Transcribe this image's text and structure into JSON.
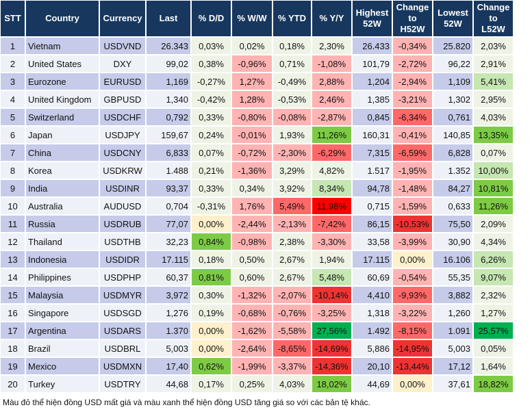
{
  "headers": [
    "STT",
    "Country",
    "Currency",
    "Last",
    "% D/D",
    "% W/W",
    "% YTD",
    "% Y/Y",
    "Highest\n52W",
    "Change\nto\nH52W",
    "Lowest\n52W",
    "Change\nto\nL52W"
  ],
  "tone_colors": {
    "n": "#eef3e6",
    "y": "#fff0cc",
    "r1": "#ffb3b3",
    "r2": "#ff6868",
    "r3": "#ee3333",
    "r4": "#ff0000",
    "g1": "#c6e6b2",
    "g2": "#7dcb45",
    "g3": "#00b050",
    "header": "#17375e",
    "row_blue": "#c5cbe9"
  },
  "rows": [
    {
      "cells": [
        "1",
        "Vietnam",
        "USDVND",
        "26.343",
        "0,03%",
        "0,02%",
        "0,18%",
        "2,30%",
        "26.433",
        "-0,34%",
        "25.820",
        "2,03%"
      ],
      "tones": [
        "n",
        "n",
        "n",
        "n",
        "r1",
        "n"
      ]
    },
    {
      "cells": [
        "2",
        "United States",
        "DXY",
        "99,02",
        "0,38%",
        "-0,96%",
        "0,71%",
        "-1,08%",
        "101,79",
        "-2,72%",
        "96,22",
        "2,91%"
      ],
      "tones": [
        "n",
        "r1",
        "n",
        "r1",
        "r1",
        "n"
      ]
    },
    {
      "cells": [
        "3",
        "Eurozone",
        "EURUSD",
        "1,169",
        "-0,27%",
        "1,27%",
        "-0,49%",
        "2,88%",
        "1,204",
        "-2,94%",
        "1,109",
        "5,41%"
      ],
      "tones": [
        "n",
        "r1",
        "n",
        "r1",
        "r1",
        "g1"
      ]
    },
    {
      "cells": [
        "4",
        "United Kingdom",
        "GBPUSD",
        "1,340",
        "-0,42%",
        "1,28%",
        "-0,53%",
        "2,46%",
        "1,385",
        "-3,21%",
        "1,302",
        "2,95%"
      ],
      "tones": [
        "n",
        "r1",
        "n",
        "r1",
        "r1",
        "n"
      ]
    },
    {
      "cells": [
        "5",
        "Switzerland",
        "USDCHF",
        "0,792",
        "0,33%",
        "-0,80%",
        "-0,08%",
        "-2,87%",
        "0,845",
        "-6,34%",
        "0,761",
        "4,03%"
      ],
      "tones": [
        "n",
        "r1",
        "r1",
        "r1",
        "r2",
        "n"
      ]
    },
    {
      "cells": [
        "6",
        "Japan",
        "USDJPY",
        "159,67",
        "0,24%",
        "-0,01%",
        "1,93%",
        "11,26%",
        "160,31",
        "-0,41%",
        "140,85",
        "13,35%"
      ],
      "tones": [
        "n",
        "r1",
        "n",
        "g2",
        "r1",
        "g2"
      ]
    },
    {
      "cells": [
        "7",
        "China",
        "USDCNY",
        "6,833",
        "0,07%",
        "-0,72%",
        "-2,30%",
        "-6,29%",
        "7,315",
        "-6,59%",
        "6,828",
        "0,07%"
      ],
      "tones": [
        "n",
        "r1",
        "r1",
        "r2",
        "r2",
        "n"
      ]
    },
    {
      "cells": [
        "8",
        "Korea",
        "USDKRW",
        "1.488",
        "0,21%",
        "-1,36%",
        "3,29%",
        "4,82%",
        "1.517",
        "-1,95%",
        "1.352",
        "10,00%"
      ],
      "tones": [
        "n",
        "r1",
        "n",
        "n",
        "r1",
        "g1"
      ]
    },
    {
      "cells": [
        "9",
        "India",
        "USDINR",
        "93,37",
        "0,33%",
        "0,34%",
        "3,92%",
        "8,34%",
        "94,78",
        "-1,48%",
        "84,27",
        "10,81%"
      ],
      "tones": [
        "n",
        "n",
        "n",
        "g1",
        "r1",
        "g2"
      ]
    },
    {
      "cells": [
        "10",
        "Australia",
        "AUDUSD",
        "0,704",
        "-0,31%",
        "1,76%",
        "5,49%",
        "11,98%",
        "0,715",
        "-1,59%",
        "0,633",
        "11,26%"
      ],
      "tones": [
        "n",
        "r1",
        "r2",
        "r4",
        "r1",
        "g2"
      ]
    },
    {
      "cells": [
        "11",
        "Russia",
        "USDRUB",
        "77,07",
        "0,00%",
        "-2,44%",
        "-2,13%",
        "-7,42%",
        "86,15",
        "-10,53%",
        "75,50",
        "2,09%"
      ],
      "tones": [
        "y",
        "r1",
        "r1",
        "r2",
        "r3",
        "n"
      ]
    },
    {
      "cells": [
        "12",
        "Thailand",
        "USDTHB",
        "32,23",
        "0,84%",
        "-0,98%",
        "2,38%",
        "-3,30%",
        "33,58",
        "-3,99%",
        "30,90",
        "4,34%"
      ],
      "tones": [
        "g2",
        "r1",
        "n",
        "r1",
        "r1",
        "n"
      ]
    },
    {
      "cells": [
        "13",
        "Indonesia",
        "USDIDR",
        "17.115",
        "0,18%",
        "0,50%",
        "2,67%",
        "1,94%",
        "17.115",
        "0,00%",
        "16.106",
        "6,26%"
      ],
      "tones": [
        "n",
        "n",
        "n",
        "n",
        "y",
        "g1"
      ]
    },
    {
      "cells": [
        "14",
        "Philippines",
        "USDPHP",
        "60,37",
        "0,81%",
        "0,60%",
        "2,67%",
        "5,48%",
        "60,69",
        "-0,54%",
        "55,35",
        "9,07%"
      ],
      "tones": [
        "g2",
        "n",
        "n",
        "g1",
        "r1",
        "g1"
      ]
    },
    {
      "cells": [
        "15",
        "Malaysia",
        "USDMYR",
        "3,972",
        "0,30%",
        "-1,32%",
        "-2,07%",
        "-10,14%",
        "4,410",
        "-9,93%",
        "3,882",
        "2,32%"
      ],
      "tones": [
        "n",
        "r1",
        "r1",
        "r3",
        "r2",
        "n"
      ]
    },
    {
      "cells": [
        "16",
        "Singapore",
        "USDSGD",
        "1,276",
        "0,19%",
        "-0,68%",
        "-0,76%",
        "-3,25%",
        "1,318",
        "-3,22%",
        "1,260",
        "1,27%"
      ],
      "tones": [
        "n",
        "r1",
        "r1",
        "r1",
        "r1",
        "n"
      ]
    },
    {
      "cells": [
        "17",
        "Argentina",
        "USDARS",
        "1.370",
        "0,00%",
        "-1,62%",
        "-5,58%",
        "27,56%",
        "1.492",
        "-8,15%",
        "1.091",
        "25,57%"
      ],
      "tones": [
        "y",
        "r1",
        "r1",
        "g3",
        "r2",
        "g3"
      ]
    },
    {
      "cells": [
        "18",
        "Brazil",
        "USDBRL",
        "5,003",
        "0,00%",
        "-2,64%",
        "-8,65%",
        "-14,69%",
        "5,886",
        "-14,95%",
        "5,003",
        "0,05%"
      ],
      "tones": [
        "y",
        "r1",
        "r2",
        "r3",
        "r3",
        "n"
      ]
    },
    {
      "cells": [
        "19",
        "Mexico",
        "USDMXN",
        "17,40",
        "0,62%",
        "-1,99%",
        "-3,37%",
        "-14,36%",
        "20,10",
        "-13,44%",
        "17,12",
        "1,64%"
      ],
      "tones": [
        "g2",
        "r1",
        "r1",
        "r3",
        "r3",
        "n"
      ]
    },
    {
      "cells": [
        "20",
        "Turkey",
        "USDTRY",
        "44,68",
        "0,17%",
        "0,25%",
        "4,03%",
        "18,02%",
        "44,69",
        "0,00%",
        "37,61",
        "18,82%"
      ],
      "tones": [
        "n",
        "n",
        "n",
        "g2",
        "y",
        "g2"
      ]
    }
  ],
  "footnote": "Màu đỏ thể hiện đồng USD mất giá và màu xanh thể hiện đồng USD tăng giá so với các bản tệ khác."
}
